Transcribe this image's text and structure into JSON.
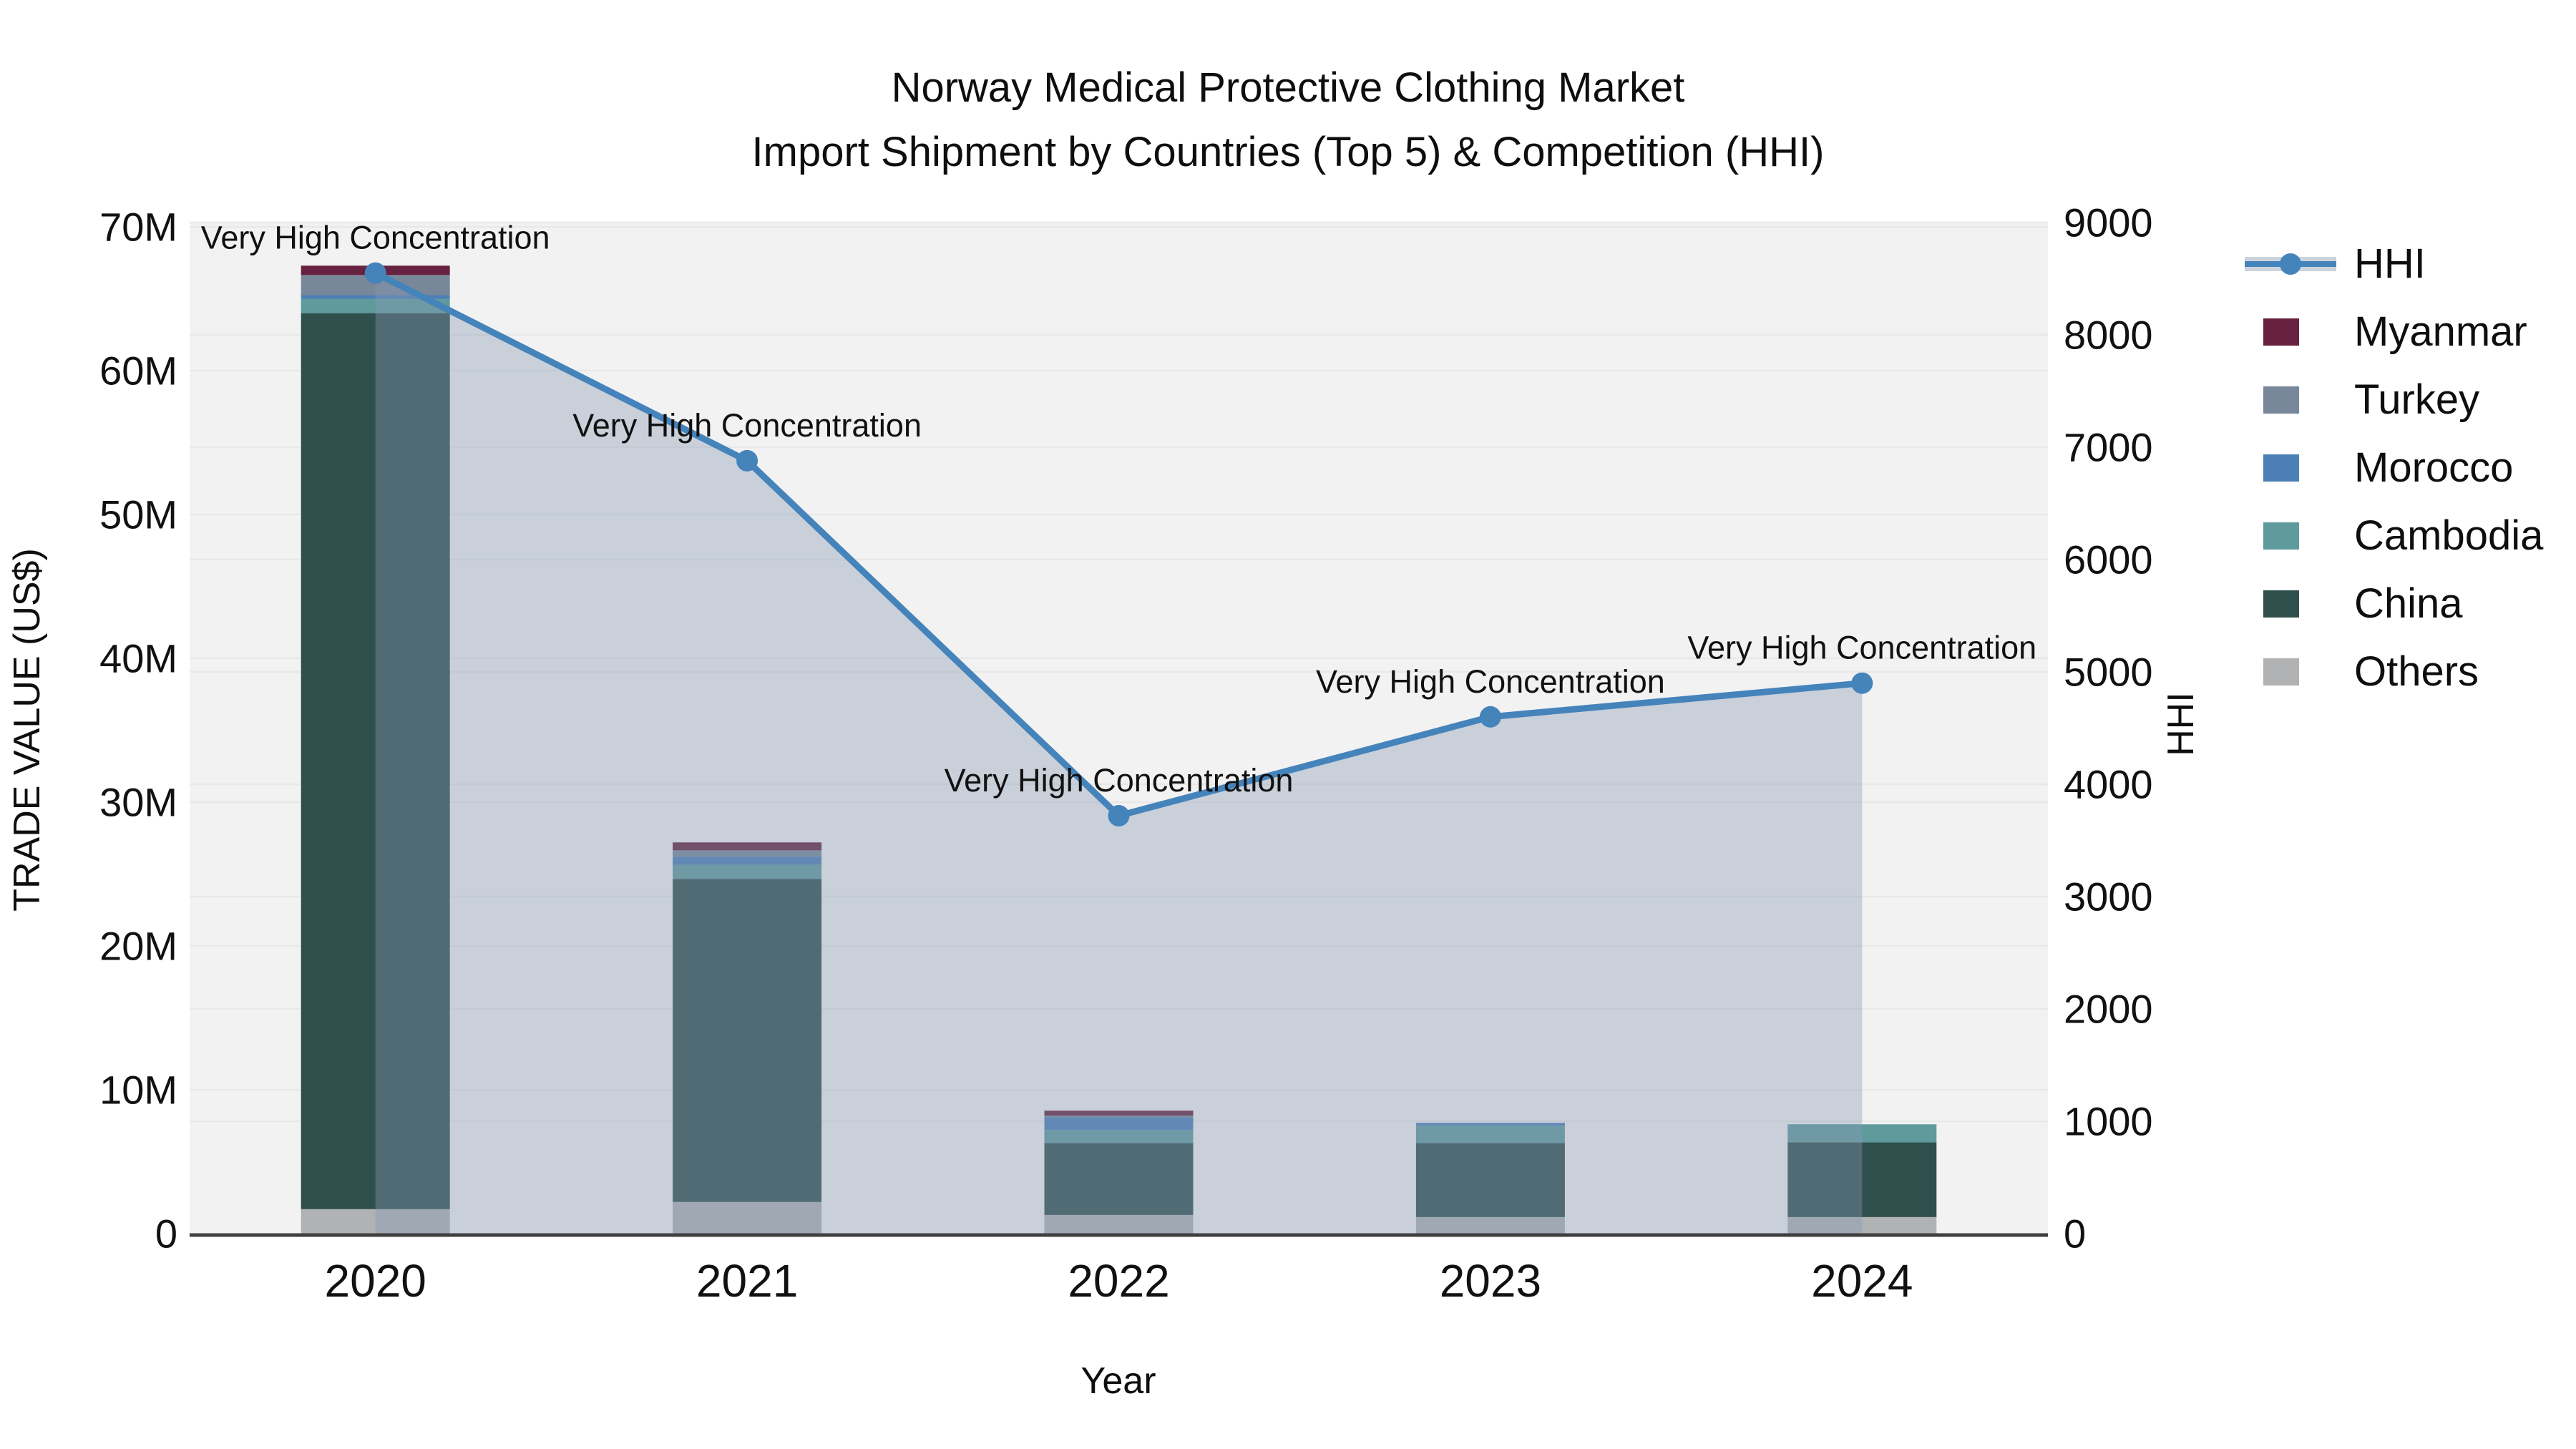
{
  "title": {
    "line1": "Norway Medical Protective Clothing Market",
    "line2": "Import Shipment by Countries (Top 5) & Competition (HHI)"
  },
  "axes": {
    "x": {
      "title": "Year",
      "categories": [
        "2020",
        "2021",
        "2022",
        "2023",
        "2024"
      ]
    },
    "y_left": {
      "title": "TRADE VALUE (US$)",
      "tick_labels": [
        "0",
        "10M",
        "20M",
        "30M",
        "40M",
        "50M",
        "60M",
        "70M"
      ],
      "tick_values_musd": [
        0,
        10,
        20,
        30,
        40,
        50,
        60,
        70
      ],
      "range_musd": [
        0,
        70
      ]
    },
    "y_right": {
      "title": "HHI",
      "tick_labels": [
        "0",
        "1000",
        "2000",
        "3000",
        "4000",
        "5000",
        "6000",
        "7000",
        "8000",
        "9000"
      ],
      "tick_values": [
        0,
        1000,
        2000,
        3000,
        4000,
        5000,
        6000,
        7000,
        8000,
        9000
      ],
      "range": [
        0,
        9000
      ]
    }
  },
  "chart_data": [
    {
      "type": "bar",
      "stacked": true,
      "unit": "USD millions",
      "categories": [
        "2020",
        "2021",
        "2022",
        "2023",
        "2024"
      ],
      "series": [
        {
          "name": "Others",
          "color": "#b0b2b4",
          "values_musd": [
            1.7,
            2.2,
            1.3,
            1.15,
            1.15
          ]
        },
        {
          "name": "China",
          "color": "#2f4f4d",
          "values_musd": [
            62.3,
            22.45,
            5.0,
            5.15,
            5.2
          ]
        },
        {
          "name": "Cambodia",
          "color": "#5f9a9d",
          "values_musd": [
            1.0,
            1.0,
            0.9,
            1.2,
            1.25
          ]
        },
        {
          "name": "Morocco",
          "color": "#4d7fb7",
          "values_musd": [
            0.25,
            0.55,
            0.9,
            0.2,
            0
          ]
        },
        {
          "name": "Turkey",
          "color": "#78879a",
          "values_musd": [
            1.4,
            0.45,
            0.1,
            0,
            0
          ]
        },
        {
          "name": "Myanmar",
          "color": "#662240",
          "values_musd": [
            0.65,
            0.55,
            0.35,
            0,
            0
          ]
        }
      ],
      "xlabel": "Year",
      "ylabel": "TRADE VALUE (US$)",
      "ylim_musd": [
        0,
        70
      ],
      "grid": true,
      "legend_position": "right"
    },
    {
      "type": "line",
      "name": "HHI",
      "x": [
        "2020",
        "2021",
        "2022",
        "2023",
        "2024"
      ],
      "values": [
        8550,
        6880,
        3720,
        4600,
        4900
      ],
      "color": "#4583bb",
      "area_fill": "rgba(133,153,179,0.38)",
      "marker": "circle",
      "ylabel": "HHI",
      "ylim": [
        0,
        9000
      ],
      "annotations": [
        "Very High Concentration",
        "Very High Concentration",
        "Very High Concentration",
        "Very High Concentration",
        "Very High Concentration"
      ]
    }
  ],
  "legend": {
    "items": [
      {
        "label": "HHI",
        "color": "#4583bb",
        "symbol": "line-marker-band"
      },
      {
        "label": "Myanmar",
        "color": "#662240",
        "symbol": "square"
      },
      {
        "label": "Turkey",
        "color": "#78879a",
        "symbol": "square"
      },
      {
        "label": "Morocco",
        "color": "#4d7fb7",
        "symbol": "square"
      },
      {
        "label": "Cambodia",
        "color": "#5f9a9d",
        "symbol": "square"
      },
      {
        "label": "China",
        "color": "#2f4f4d",
        "symbol": "square"
      },
      {
        "label": "Others",
        "color": "#b0b2b4",
        "symbol": "square"
      }
    ]
  },
  "plot_style": {
    "plot_background": "#f2f2f2",
    "page_background": "#ffffff",
    "gridline_color": "#e8e8e8",
    "axis_line_color": "#3f3f3f",
    "text_color": "#111111",
    "hhi_band_color": "#ccd3dc"
  }
}
